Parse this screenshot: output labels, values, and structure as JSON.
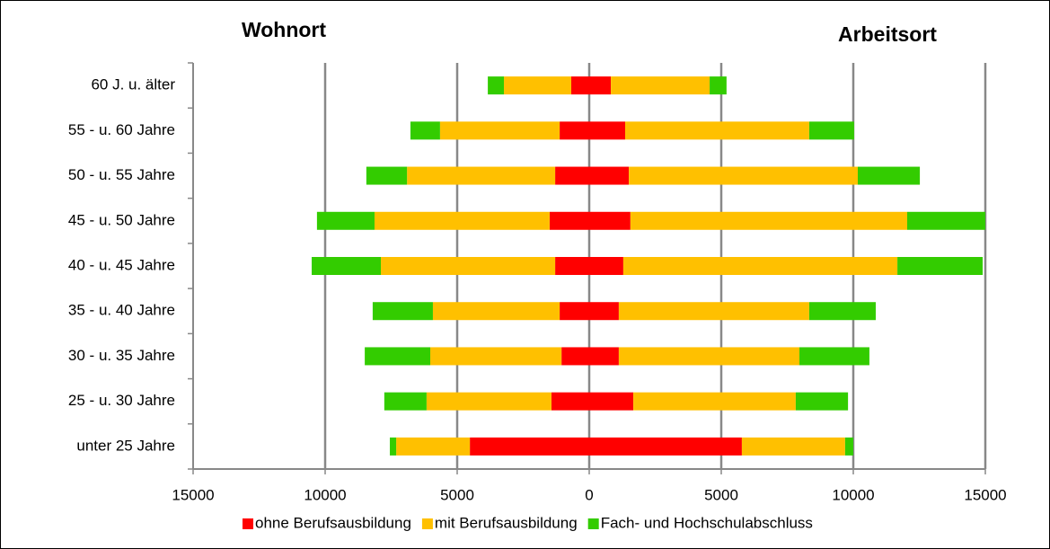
{
  "chart_data": {
    "type": "butterfly_bar",
    "side_titles": [
      "Wohnort",
      "Arbeitsort"
    ],
    "categories": [
      "unter 25 Jahre",
      "25 - u. 30 Jahre",
      "30 - u. 35 Jahre",
      "35 - u. 40 Jahre",
      "40 - u. 45 Jahre",
      "45 - u. 50 Jahre",
      "50 - u. 55 Jahre",
      "55 - u. 60 Jahre",
      "60 J. u. älter"
    ],
    "series": [
      {
        "name": "ohne Berufsausbildung",
        "color": "#ff0000",
        "values_wohnort": [
          -4520,
          -1430,
          -1050,
          -1120,
          -1290,
          -1500,
          -1290,
          -1120,
          -680
        ],
        "values": [
          5780,
          1670,
          1120,
          1120,
          1290,
          1560,
          1500,
          1360,
          820
        ]
      },
      {
        "name": "mit Berufsausbildung",
        "color": "#ffc000",
        "values_wohnort": [
          -2790,
          -4730,
          -4970,
          -4800,
          -6600,
          -6630,
          -5610,
          -4530,
          -2550
        ],
        "values": [
          3910,
          6150,
          6840,
          7210,
          10380,
          10480,
          8670,
          6970,
          3740
        ]
      },
      {
        "name": "Fach- und Hochschulabschluss",
        "color": "#33cc00",
        "values_wohnort": [
          -240,
          -1600,
          -2480,
          -2280,
          -2620,
          -2180,
          -1540,
          -1120,
          -610
        ],
        "values": [
          310,
          1980,
          2650,
          2520,
          3230,
          2960,
          2350,
          1700,
          640
        ]
      }
    ],
    "xlim": [
      -15000,
      15000
    ],
    "xticks": [
      {
        "value": -15000,
        "label": "15000"
      },
      {
        "value": -10000,
        "label": "10000"
      },
      {
        "value": -5000,
        "label": "5000"
      },
      0,
      5000,
      10000,
      15000
    ],
    "grid": true,
    "legend": "bottom"
  }
}
